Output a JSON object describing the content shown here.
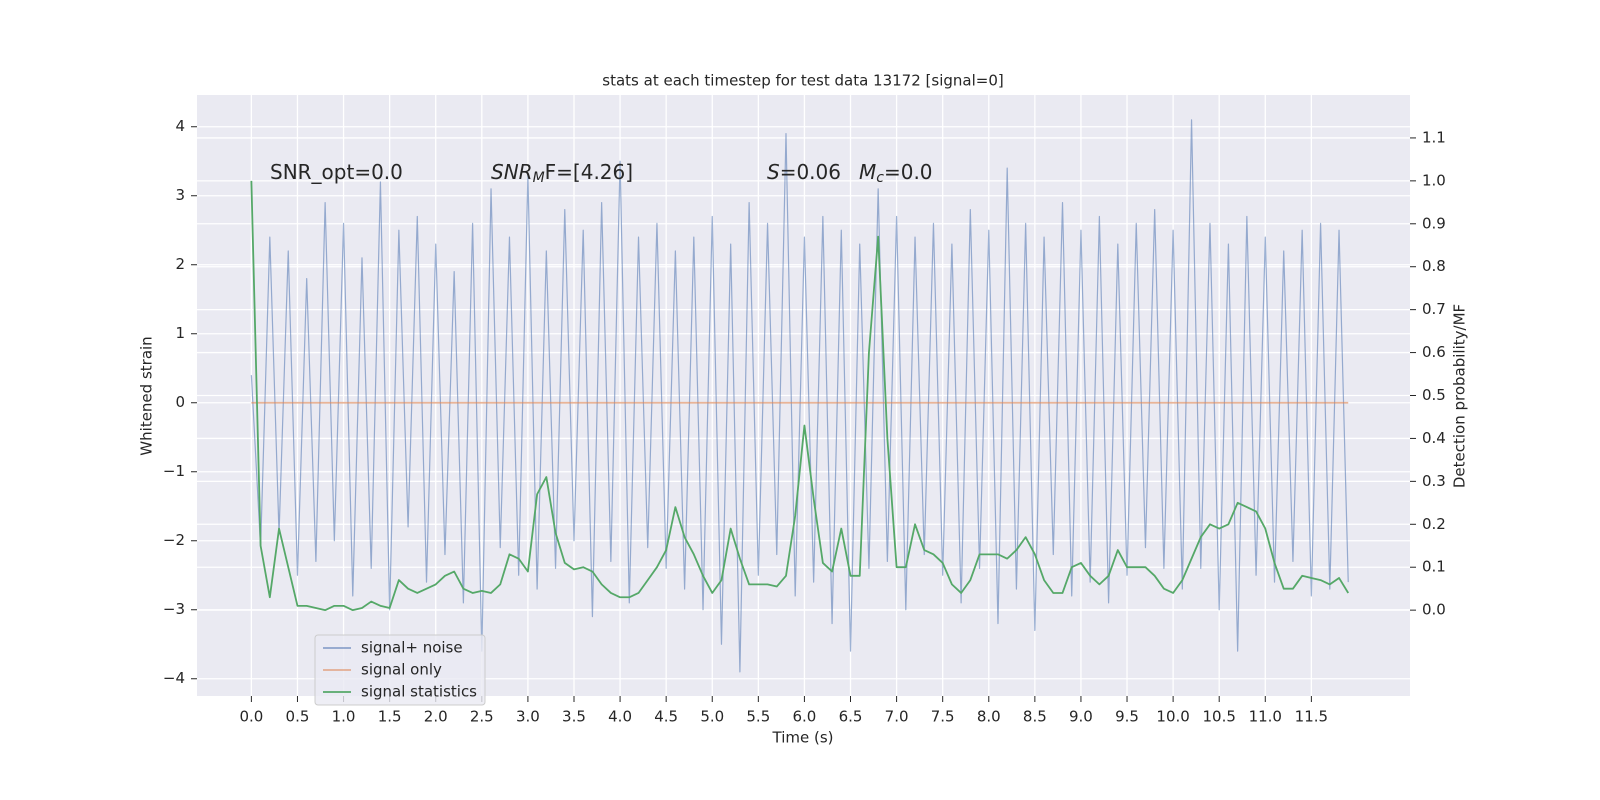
{
  "chart_data": {
    "type": "line",
    "title": "stats at each timestep for test data 13172 [signal=0]",
    "xlabel": "Time (s)",
    "ylabel": "Whitened strain",
    "y2label": "Detection probability/MF",
    "annotations": [
      {
        "text": "SNR_opt=0.0"
      },
      {
        "text": "SNR",
        "sub": "M",
        "rest": "F=[4.26]"
      },
      {
        "text": "S",
        "rest": "=0.06"
      },
      {
        "text": "M",
        "sub": "c",
        "rest": "=0.0"
      }
    ],
    "xlim": [
      -0.59,
      12.57
    ],
    "ylim": [
      -4.25,
      4.46
    ],
    "y2lim": [
      -0.2,
      1.2
    ],
    "xticks": [
      {
        "value": 0,
        "label": "0.0"
      },
      0.5,
      {
        "value": 1,
        "label": "1.0"
      },
      1.5,
      {
        "value": 2,
        "label": "2.0"
      },
      2.5,
      {
        "value": 3,
        "label": "3.0"
      },
      3.5,
      {
        "value": 4,
        "label": "4.0"
      },
      4.5,
      {
        "value": 5,
        "label": "5.0"
      },
      5.5,
      {
        "value": 6,
        "label": "6.0"
      },
      6.5,
      {
        "value": 7,
        "label": "7.0"
      },
      7.5,
      {
        "value": 8,
        "label": "8.0"
      },
      8.5,
      {
        "value": 9,
        "label": "9.0"
      },
      9.5,
      {
        "value": 10,
        "label": "10.0"
      },
      10.5,
      {
        "value": 11,
        "label": "11.0"
      },
      11.5
    ],
    "yticks": [
      {
        "value": -4,
        "label": "−4"
      },
      {
        "value": -3,
        "label": "−3"
      },
      {
        "value": -2,
        "label": "−2"
      },
      {
        "value": -1,
        "label": "−1"
      },
      0,
      1,
      2,
      3,
      4
    ],
    "y2ticks": [
      {
        "value": 0,
        "label": "0.0"
      },
      0.1,
      0.2,
      0.3,
      0.4,
      0.5,
      0.6,
      0.7,
      0.8,
      0.9,
      {
        "value": 1,
        "label": "1.0"
      },
      1.1
    ],
    "grid": true,
    "legend": "lower left",
    "x": [
      0,
      0.1,
      0.2,
      0.3,
      0.4,
      0.5,
      0.6,
      0.7,
      0.8,
      0.9,
      1,
      1.1,
      1.2,
      1.3,
      1.4,
      1.5,
      1.6,
      1.7,
      1.8,
      1.9,
      2,
      2.1,
      2.2,
      2.3,
      2.4,
      2.5,
      2.6,
      2.7,
      2.8,
      2.9,
      3,
      3.1,
      3.2,
      3.3,
      3.4,
      3.5,
      3.6,
      3.7,
      3.8,
      3.9,
      4,
      4.1,
      4.2,
      4.3,
      4.4,
      4.5,
      4.6,
      4.7,
      4.8,
      4.9,
      5,
      5.1,
      5.2,
      5.3,
      5.4,
      5.5,
      5.6,
      5.7,
      5.8,
      5.9,
      6,
      6.1,
      6.2,
      6.3,
      6.4,
      6.5,
      6.6,
      6.7,
      6.8,
      6.9,
      7,
      7.1,
      7.2,
      7.3,
      7.4,
      7.5,
      7.6,
      7.7,
      7.8,
      7.9,
      8,
      8.1,
      8.2,
      8.3,
      8.4,
      8.5,
      8.6,
      8.7,
      8.8,
      8.9,
      9,
      9.1,
      9.2,
      9.3,
      9.4,
      9.5,
      9.6,
      9.7,
      9.8,
      9.9,
      10,
      10.1,
      10.2,
      10.3,
      10.4,
      10.5,
      10.6,
      10.7,
      10.8,
      10.9,
      11,
      11.1,
      11.2,
      11.3,
      11.4,
      11.5,
      11.6,
      11.7,
      11.8,
      11.9
    ],
    "series": [
      {
        "name": "signal+ noise",
        "color": "#4c72b0",
        "values": [
          0.4,
          -2.1,
          2.4,
          -1.9,
          2.2,
          -2.5,
          1.8,
          -2.3,
          2.9,
          -2.0,
          2.6,
          -2.8,
          2.1,
          -2.4,
          3.2,
          -3.0,
          2.5,
          -1.8,
          2.7,
          -2.6,
          2.3,
          -2.2,
          1.9,
          -2.9,
          2.6,
          -3.6,
          3.1,
          -2.1,
          2.4,
          -2.5,
          3.3,
          -2.7,
          2.2,
          -2.4,
          2.8,
          -2.0,
          2.5,
          -3.1,
          2.9,
          -2.3,
          3.5,
          -2.9,
          2.4,
          -2.1,
          2.6,
          -2.4,
          2.2,
          -2.7,
          2.4,
          -3.0,
          2.7,
          -3.5,
          2.3,
          -3.9,
          2.9,
          -2.5,
          2.6,
          -2.2,
          3.9,
          -2.8,
          2.4,
          -2.6,
          2.7,
          -3.2,
          2.5,
          -3.6,
          2.3,
          -2.4,
          3.1,
          -2.3,
          2.7,
          -3.0,
          2.4,
          -2.2,
          2.6,
          -2.5,
          2.3,
          -2.9,
          2.8,
          -2.4,
          2.5,
          -3.2,
          3.4,
          -2.7,
          2.6,
          -3.3,
          2.4,
          -2.2,
          2.9,
          -2.8,
          2.5,
          -2.6,
          2.7,
          -2.9,
          2.3,
          -2.5,
          2.6,
          -2.1,
          2.8,
          -2.4,
          2.5,
          -2.7,
          4.1,
          -2.4,
          2.6,
          -3.0,
          2.3,
          -3.6,
          2.7,
          -2.5,
          2.4,
          -2.6,
          2.2,
          -2.3,
          2.5,
          -2.8,
          2.6,
          -2.7,
          2.5,
          -2.6
        ]
      },
      {
        "name": "signal only",
        "color": "#dd8452",
        "x": [
          0,
          11.9
        ],
        "values": [
          0,
          0
        ]
      },
      {
        "name": "signal statistics",
        "color": "#55a868",
        "axis": "y2",
        "values": [
          1.0,
          0.15,
          0.03,
          0.19,
          0.1,
          0.01,
          0.01,
          0.005,
          0.0,
          0.01,
          0.01,
          0.0,
          0.005,
          0.02,
          0.01,
          0.005,
          0.07,
          0.05,
          0.04,
          0.05,
          0.06,
          0.08,
          0.09,
          0.05,
          0.04,
          0.045,
          0.04,
          0.06,
          0.13,
          0.12,
          0.09,
          0.27,
          0.31,
          0.18,
          0.11,
          0.095,
          0.1,
          0.09,
          0.06,
          0.04,
          0.03,
          0.03,
          0.04,
          0.07,
          0.1,
          0.14,
          0.24,
          0.17,
          0.13,
          0.08,
          0.04,
          0.07,
          0.19,
          0.12,
          0.06,
          0.06,
          0.06,
          0.055,
          0.08,
          0.22,
          0.43,
          0.26,
          0.11,
          0.09,
          0.19,
          0.08,
          0.08,
          0.6,
          0.87,
          0.4,
          0.1,
          0.1,
          0.2,
          0.14,
          0.13,
          0.11,
          0.06,
          0.04,
          0.07,
          0.13,
          0.13,
          0.13,
          0.12,
          0.14,
          0.17,
          0.13,
          0.07,
          0.04,
          0.04,
          0.1,
          0.11,
          0.08,
          0.06,
          0.08,
          0.14,
          0.1,
          0.1,
          0.1,
          0.08,
          0.05,
          0.04,
          0.07,
          0.12,
          0.17,
          0.2,
          0.19,
          0.2,
          0.25,
          0.24,
          0.23,
          0.19,
          0.11,
          0.05,
          0.05,
          0.08,
          0.075,
          0.07,
          0.06,
          0.075,
          0.04
        ]
      }
    ]
  }
}
